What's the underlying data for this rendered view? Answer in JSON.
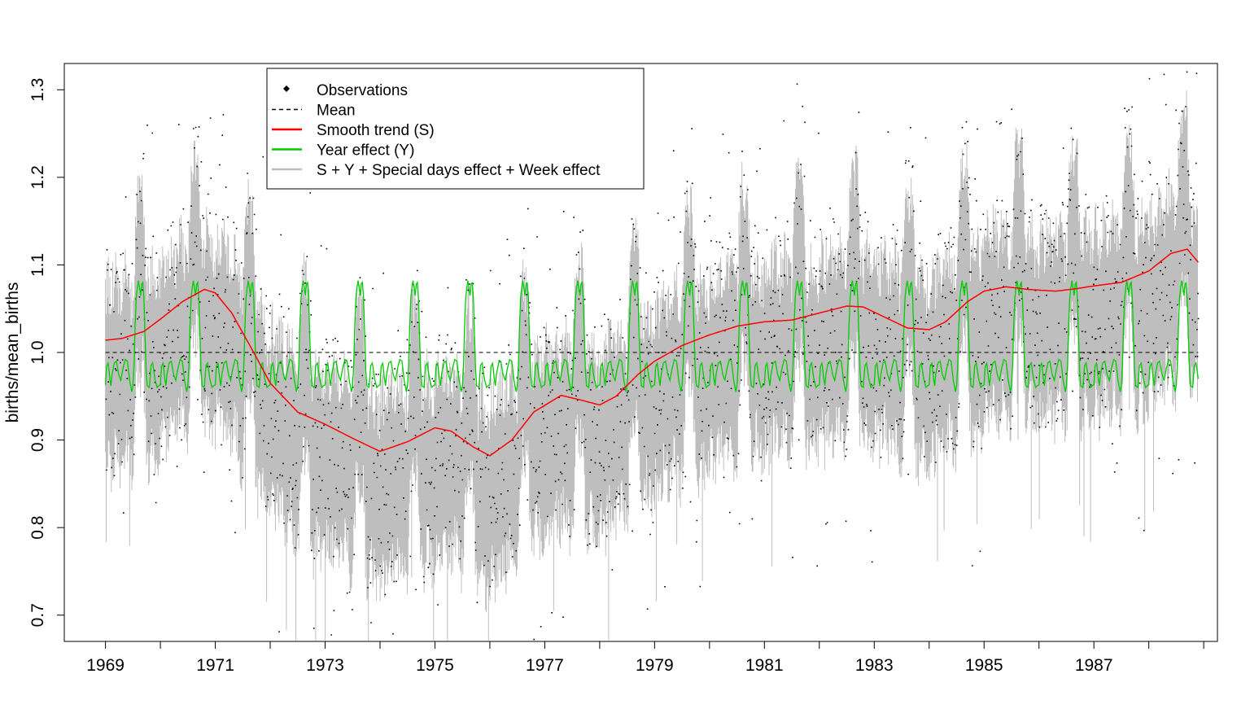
{
  "chart_data": {
    "type": "line",
    "title": "",
    "xlabel": "",
    "ylabel": "births/mean_births",
    "xlim": [
      1968.25,
      1989.25
    ],
    "ylim": [
      0.67,
      1.33
    ],
    "x_tick_labels": [
      "1969",
      "1971",
      "1973",
      "1975",
      "1977",
      "1979",
      "1981",
      "1983",
      "1985",
      "1987"
    ],
    "x_ticks_all": [
      1969,
      1970,
      1971,
      1972,
      1973,
      1974,
      1975,
      1976,
      1977,
      1978,
      1979,
      1980,
      1981,
      1982,
      1983,
      1984,
      1985,
      1986,
      1987,
      1988,
      1989
    ],
    "y_ticks": [
      0.7,
      0.8,
      0.9,
      1.0,
      1.1,
      1.2,
      1.3
    ],
    "y_tick_labels": [
      "0.7",
      "0.8",
      "0.9",
      "1.0",
      "1.1",
      "1.2",
      "1.3"
    ],
    "grid": false,
    "legend_position": "top-left",
    "legend": [
      {
        "label": "Observations",
        "symbol": "point",
        "color": "#000000"
      },
      {
        "label": "Mean",
        "symbol": "dashed",
        "color": "#000000"
      },
      {
        "label": "Smooth trend (S)",
        "symbol": "line",
        "color": "#ff0000"
      },
      {
        "label": "Year effect (Y)",
        "symbol": "line",
        "color": "#00cd00"
      },
      {
        "label": "S + Y + Special days effect + Week effect",
        "symbol": "line",
        "color": "#bebebe"
      }
    ],
    "series": [
      {
        "name": "Mean",
        "style": "dashed",
        "color": "#000000",
        "x": [
          1969.0,
          1988.9
        ],
        "y": [
          1.0,
          1.0
        ]
      },
      {
        "name": "Smooth trend (S)",
        "style": "line",
        "color": "#ff0000",
        "x": [
          1969.0,
          1969.3,
          1969.7,
          1970.0,
          1970.4,
          1970.8,
          1971.0,
          1971.3,
          1971.7,
          1972.0,
          1972.5,
          1973.0,
          1973.5,
          1974.0,
          1974.5,
          1975.0,
          1975.3,
          1975.7,
          1976.0,
          1976.4,
          1976.8,
          1977.3,
          1977.7,
          1978.0,
          1978.3,
          1978.7,
          1979.0,
          1979.5,
          1980.0,
          1980.5,
          1981.0,
          1981.5,
          1982.0,
          1982.5,
          1982.8,
          1983.2,
          1983.6,
          1984.0,
          1984.3,
          1984.7,
          1985.0,
          1985.4,
          1985.8,
          1986.3,
          1986.7,
          1987.0,
          1987.5,
          1988.0,
          1988.4,
          1988.7,
          1988.9
        ],
        "y": [
          1.014,
          1.016,
          1.024,
          1.038,
          1.058,
          1.072,
          1.068,
          1.045,
          1.0,
          0.965,
          0.932,
          0.918,
          0.902,
          0.887,
          0.898,
          0.914,
          0.91,
          0.892,
          0.882,
          0.9,
          0.932,
          0.951,
          0.945,
          0.94,
          0.95,
          0.975,
          0.99,
          1.008,
          1.02,
          1.03,
          1.035,
          1.037,
          1.045,
          1.053,
          1.052,
          1.04,
          1.028,
          1.026,
          1.035,
          1.058,
          1.07,
          1.075,
          1.072,
          1.07,
          1.073,
          1.076,
          1.08,
          1.093,
          1.113,
          1.118,
          1.103
        ]
      },
      {
        "name": "Year effect (Y)",
        "style": "line",
        "color": "#00cd00",
        "periodic": true,
        "x": [
          0.0,
          0.02,
          0.05,
          0.08,
          0.1,
          0.12,
          0.16,
          0.2,
          0.24,
          0.28,
          0.32,
          0.36,
          0.4,
          0.44,
          0.48,
          0.5,
          0.52,
          0.54,
          0.56,
          0.58,
          0.6,
          0.62,
          0.64,
          0.66,
          0.68,
          0.7,
          0.72,
          0.74,
          0.76,
          0.8,
          0.83,
          0.86,
          0.9,
          0.94,
          0.97,
          1.0
        ],
        "y": [
          0.963,
          0.984,
          0.988,
          0.97,
          0.962,
          0.975,
          0.988,
          0.99,
          0.975,
          0.968,
          0.982,
          0.992,
          0.99,
          0.968,
          0.955,
          0.962,
          0.985,
          1.03,
          1.062,
          1.074,
          1.082,
          1.074,
          1.065,
          1.078,
          1.08,
          1.062,
          1.02,
          0.98,
          0.962,
          0.96,
          0.985,
          0.988,
          0.97,
          0.96,
          0.962,
          0.963
        ]
      },
      {
        "name": "Observations",
        "style": "points",
        "color": "#000000",
        "summary": "daily observations scattered around the grey model band; seasonal peaks each autumn; values approximately within 0.70 to 1.32"
      },
      {
        "name": "S + Y + Special days effect + Week effect",
        "style": "band",
        "color": "#bebebe",
        "summary": "daily model fit; dense vertical band roughly trend + year effect ± 0.12"
      }
    ]
  }
}
